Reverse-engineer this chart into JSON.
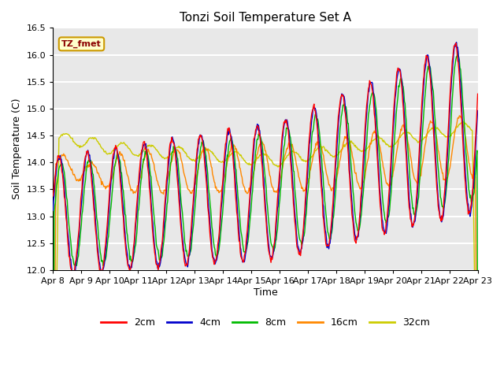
{
  "title": "Tonzi Soil Temperature Set A",
  "xlabel": "Time",
  "ylabel": "Soil Temperature (C)",
  "ylim": [
    12.0,
    16.5
  ],
  "yticks": [
    12.0,
    12.5,
    13.0,
    13.5,
    14.0,
    14.5,
    15.0,
    15.5,
    16.0,
    16.5
  ],
  "xtick_labels": [
    "Apr 8",
    "Apr 9",
    "Apr 10",
    "Apr 11",
    "Apr 12",
    "Apr 13",
    "Apr 14",
    "Apr 15",
    "Apr 16",
    "Apr 17",
    "Apr 18",
    "Apr 19",
    "Apr 20",
    "Apr 21",
    "Apr 22",
    "Apr 23"
  ],
  "label_box_text": "TZ_fmet",
  "label_box_color": "#ffffcc",
  "label_box_edge": "#cc9900",
  "series_colors": [
    "#ff0000",
    "#0000cc",
    "#00bb00",
    "#ff8800",
    "#cccc00"
  ],
  "series_labels": [
    "2cm",
    "4cm",
    "8cm",
    "16cm",
    "32cm"
  ],
  "plot_bg_color": "#e8e8e8",
  "grid_color": "#ffffff",
  "n_days": 15,
  "points_per_day": 48
}
